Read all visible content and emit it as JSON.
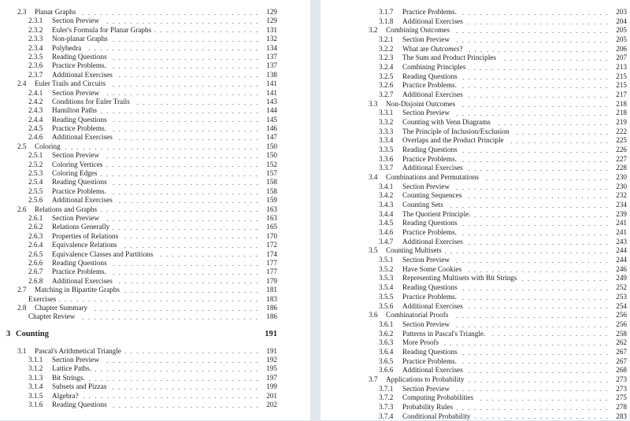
{
  "left_page": [
    {
      "type": "sec",
      "num": "2.3",
      "title": "Planar Graphs",
      "page": "129"
    },
    {
      "type": "sub",
      "num": "2.3.1",
      "title": "Section Preview",
      "page": "129"
    },
    {
      "type": "sub",
      "num": "2.3.2",
      "title": "Euler's Formula for Planar Graphs",
      "page": "131"
    },
    {
      "type": "sub",
      "num": "2.3.3",
      "title": "Non-planar Graphs",
      "page": "132"
    },
    {
      "type": "sub",
      "num": "2.3.4",
      "title": "Polyhedra",
      "page": "134"
    },
    {
      "type": "sub",
      "num": "2.3.5",
      "title": "Reading Questions",
      "page": "137"
    },
    {
      "type": "sub",
      "num": "2.3.6",
      "title": "Practice Problems.",
      "page": "137"
    },
    {
      "type": "sub",
      "num": "2.3.7",
      "title": "Additional Exercises",
      "page": "138"
    },
    {
      "type": "sec",
      "num": "2.4",
      "title": "Euler Trails and Circuits",
      "page": "141"
    },
    {
      "type": "sub",
      "num": "2.4.1",
      "title": "Section Preview",
      "page": "141"
    },
    {
      "type": "sub",
      "num": "2.4.2",
      "title": "Conditions for Euler Trails",
      "page": "143"
    },
    {
      "type": "sub",
      "num": "2.4.3",
      "title": "Hamilton Paths",
      "page": "144"
    },
    {
      "type": "sub",
      "num": "2.4.4",
      "title": "Reading Questions",
      "page": "145"
    },
    {
      "type": "sub",
      "num": "2.4.5",
      "title": "Practice Problems.",
      "page": "146"
    },
    {
      "type": "sub",
      "num": "2.4.6",
      "title": "Additional Exercises",
      "page": "147"
    },
    {
      "type": "sec",
      "num": "2.5",
      "title": "Coloring",
      "page": "150"
    },
    {
      "type": "sub",
      "num": "2.5.1",
      "title": "Section Preview",
      "page": "150"
    },
    {
      "type": "sub",
      "num": "2.5.2",
      "title": "Coloring Vertices",
      "page": "152"
    },
    {
      "type": "sub",
      "num": "2.5.3",
      "title": "Coloring Edges",
      "page": "157"
    },
    {
      "type": "sub",
      "num": "2.5.4",
      "title": "Reading Questions",
      "page": "158"
    },
    {
      "type": "sub",
      "num": "2.5.5",
      "title": "Practice Problems.",
      "page": "158"
    },
    {
      "type": "sub",
      "num": "2.5.6",
      "title": "Additional Exercises",
      "page": "159"
    },
    {
      "type": "sec",
      "num": "2.6",
      "title": "Relations and Graphs",
      "page": "163"
    },
    {
      "type": "sub",
      "num": "2.6.1",
      "title": "Section Preview",
      "page": "163"
    },
    {
      "type": "sub",
      "num": "2.6.2",
      "title": "Relations Generally",
      "page": "165"
    },
    {
      "type": "sub",
      "num": "2.6.3",
      "title": "Properties of Relations",
      "page": "170"
    },
    {
      "type": "sub",
      "num": "2.6.4",
      "title": "Equivalence Relations",
      "page": "172"
    },
    {
      "type": "sub",
      "num": "2.6.5",
      "title": "Equivalence Classes and Partitions",
      "page": "174"
    },
    {
      "type": "sub",
      "num": "2.6.6",
      "title": "Reading Questions",
      "page": "177"
    },
    {
      "type": "sub",
      "num": "2.6.7",
      "title": "Practice Problems.",
      "page": "177"
    },
    {
      "type": "sub",
      "num": "2.6.8",
      "title": "Additional Exercises",
      "page": "179"
    },
    {
      "type": "sec",
      "num": "2.7",
      "title": "Matching in Bipartite Graphs",
      "page": "181"
    },
    {
      "type": "plain",
      "num": "",
      "title": "Exercises",
      "page": "183"
    },
    {
      "type": "sec",
      "num": "2.8",
      "title": "Chapter Summary",
      "page": "186"
    },
    {
      "type": "plain",
      "num": "",
      "title": "Chapter Review",
      "page": "186"
    },
    {
      "type": "chap",
      "num": "3",
      "title": "Counting",
      "page": "191"
    },
    {
      "type": "sec",
      "num": "3.1",
      "title": "Pascal's Arithmetical Triangle",
      "page": "191"
    },
    {
      "type": "sub",
      "num": "3.1.1",
      "title": "Section Preview",
      "page": "192"
    },
    {
      "type": "sub",
      "num": "3.1.2",
      "title": "Lattice Paths.",
      "page": "195"
    },
    {
      "type": "sub",
      "num": "3.1.3",
      "title": "Bit Strings.",
      "page": "197"
    },
    {
      "type": "sub",
      "num": "3.1.4",
      "title": "Subsets and Pizzas",
      "page": "199"
    },
    {
      "type": "sub",
      "num": "3.1.5",
      "title": "Algebra?",
      "page": "201"
    },
    {
      "type": "sub",
      "num": "3.1.6",
      "title": "Reading Questions",
      "page": "202"
    }
  ],
  "right_page": [
    {
      "type": "sub",
      "num": "3.1.7",
      "title": "Practice Problems.",
      "page": "203"
    },
    {
      "type": "sub",
      "num": "3.1.8",
      "title": "Additional Exercises",
      "page": "204"
    },
    {
      "type": "sec",
      "num": "3.2",
      "title": "Combining Outcomes",
      "page": "205"
    },
    {
      "type": "sub",
      "num": "3.2.1",
      "title": "Section Preview",
      "page": "205"
    },
    {
      "type": "sub",
      "num": "3.2.2",
      "title": "What are ",
      "title_em": "Outcomes",
      "title_post": "?",
      "page": "206"
    },
    {
      "type": "sub",
      "num": "3.2.3",
      "title": "The Sum and Product Principles",
      "page": "207"
    },
    {
      "type": "sub",
      "num": "3.2.4",
      "title": "Combining Principles",
      "page": "213"
    },
    {
      "type": "sub",
      "num": "3.2.5",
      "title": "Reading Questions",
      "page": "215"
    },
    {
      "type": "sub",
      "num": "3.2.6",
      "title": "Practice Problems.",
      "page": "215"
    },
    {
      "type": "sub",
      "num": "3.2.7",
      "title": "Additional Exercises",
      "page": "217"
    },
    {
      "type": "sec",
      "num": "3.3",
      "title": "Non-Disjoint Outcomes",
      "page": "218"
    },
    {
      "type": "sub",
      "num": "3.3.1",
      "title": "Section Preview",
      "page": "218"
    },
    {
      "type": "sub",
      "num": "3.3.2",
      "title": "Counting with Venn Diagrams",
      "page": "219"
    },
    {
      "type": "sub",
      "num": "3.3.3",
      "title": "The Principle of Inclusion/Exclusion",
      "page": "222"
    },
    {
      "type": "sub",
      "num": "3.3.4",
      "title": "Overlaps and the Product Principle",
      "page": "225"
    },
    {
      "type": "sub",
      "num": "3.3.5",
      "title": "Reading Questions",
      "page": "226"
    },
    {
      "type": "sub",
      "num": "3.3.6",
      "title": "Practice Problems.",
      "page": "227"
    },
    {
      "type": "sub",
      "num": "3.3.7",
      "title": "Additional Exercises",
      "page": "228"
    },
    {
      "type": "sec",
      "num": "3.4",
      "title": "Combinations and Permutations",
      "page": "230"
    },
    {
      "type": "sub",
      "num": "3.4.1",
      "title": "Section Preview",
      "page": "230"
    },
    {
      "type": "sub",
      "num": "3.4.2",
      "title": "Counting Sequences",
      "page": "232"
    },
    {
      "type": "sub",
      "num": "3.4.3",
      "title": "Counting Sets",
      "page": "234"
    },
    {
      "type": "sub",
      "num": "3.4.4",
      "title": "The Quotient Principle.",
      "page": "239"
    },
    {
      "type": "sub",
      "num": "3.4.5",
      "title": "Reading Questions",
      "page": "241"
    },
    {
      "type": "sub",
      "num": "3.4.6",
      "title": "Practice Problems.",
      "page": "241"
    },
    {
      "type": "sub",
      "num": "3.4.7",
      "title": "Additional Exercises",
      "page": "243"
    },
    {
      "type": "sec",
      "num": "3.5",
      "title": "Counting Multisets",
      "page": "244"
    },
    {
      "type": "sub",
      "num": "3.5.1",
      "title": "Section Preview",
      "page": "244"
    },
    {
      "type": "sub",
      "num": "3.5.2",
      "title": "Have Some Cookies",
      "page": "246"
    },
    {
      "type": "sub",
      "num": "3.5.3",
      "title": "Representing Multisets with Bit Strings",
      "page": "249"
    },
    {
      "type": "sub",
      "num": "3.5.4",
      "title": "Reading Questions",
      "page": "252"
    },
    {
      "type": "sub",
      "num": "3.5.5",
      "title": "Practice Problems.",
      "page": "253"
    },
    {
      "type": "sub",
      "num": "3.5.6",
      "title": "Additional Exercises",
      "page": "254"
    },
    {
      "type": "sec",
      "num": "3.6",
      "title": "Combinatorial Proofs",
      "page": "256"
    },
    {
      "type": "sub",
      "num": "3.6.1",
      "title": "Section Preview",
      "page": "256"
    },
    {
      "type": "sub",
      "num": "3.6.2",
      "title": "Patterns in Pascal's Triangle.",
      "page": "258"
    },
    {
      "type": "sub",
      "num": "3.6.3",
      "title": "More Proofs",
      "page": "262"
    },
    {
      "type": "sub",
      "num": "3.6.4",
      "title": "Reading Questions",
      "page": "267"
    },
    {
      "type": "sub",
      "num": "3.6.5",
      "title": "Practice Problems.",
      "page": "267"
    },
    {
      "type": "sub",
      "num": "3.6.6",
      "title": "Additional Exercises",
      "page": "268"
    },
    {
      "type": "sec",
      "num": "3.7",
      "title": "Applications to Probability",
      "page": "273"
    },
    {
      "type": "sub",
      "num": "3.7.1",
      "title": "Section Preview",
      "page": "273"
    },
    {
      "type": "sub",
      "num": "3.7.2",
      "title": "Computing Probabilities",
      "page": "275"
    },
    {
      "type": "sub",
      "num": "3.7.3",
      "title": "Probability Rules",
      "page": "278"
    },
    {
      "type": "sub",
      "num": "3.7.4",
      "title": "Conditional Probability",
      "page": "283"
    }
  ]
}
